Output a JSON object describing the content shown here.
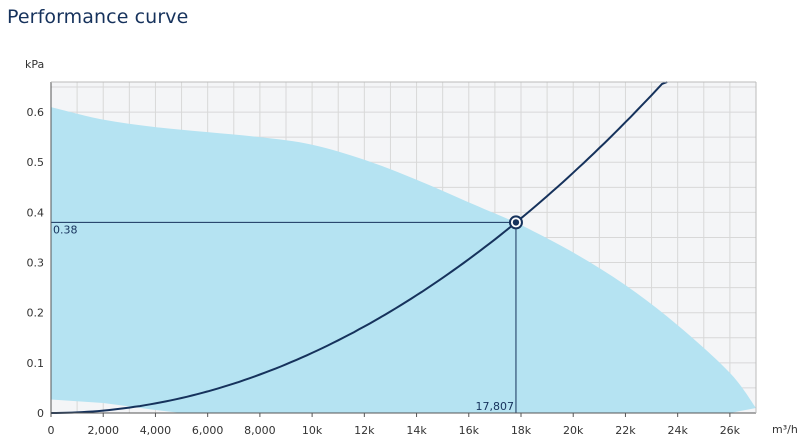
{
  "page": {
    "title": "Performance curve"
  },
  "chart_data": {
    "type": "line",
    "title": "Performance curve",
    "ylabel": "kPa",
    "xlabel": "m³/h",
    "xlim": [
      0,
      27000
    ],
    "ylim": [
      0,
      0.66
    ],
    "x_ticks": [
      0,
      2000,
      4000,
      6000,
      8000,
      10000,
      12000,
      14000,
      16000,
      18000,
      20000,
      22000,
      24000,
      26000
    ],
    "x_tick_labels": [
      "0",
      "2,000",
      "4,000",
      "6,000",
      "8,000",
      "10k",
      "12k",
      "14k",
      "16k",
      "18k",
      "20k",
      "22k",
      "24k",
      "26k"
    ],
    "y_ticks": [
      0,
      0.1,
      0.2,
      0.3,
      0.4,
      0.5,
      0.6
    ],
    "y_tick_labels": [
      "0",
      "0.1",
      "0.2",
      "0.3",
      "0.4",
      "0.5",
      "0.6"
    ],
    "grid": true,
    "colors": {
      "area": "#b5e3f2",
      "curve": "#16325c",
      "grid": "#d8d8d8",
      "plot_bg": "#f4f5f7"
    },
    "operating_range": {
      "upper": [
        [
          0,
          0.61
        ],
        [
          2000,
          0.585
        ],
        [
          4000,
          0.57
        ],
        [
          6000,
          0.56
        ],
        [
          8000,
          0.55
        ],
        [
          10000,
          0.535
        ],
        [
          12000,
          0.505
        ],
        [
          14000,
          0.465
        ],
        [
          16000,
          0.42
        ],
        [
          17807,
          0.38
        ],
        [
          18000,
          0.375
        ],
        [
          20000,
          0.32
        ],
        [
          22000,
          0.255
        ],
        [
          24000,
          0.175
        ],
        [
          26000,
          0.08
        ],
        [
          27000,
          0.01
        ]
      ],
      "lower": [
        [
          27000,
          0.01
        ],
        [
          26000,
          0.0
        ],
        [
          5000,
          0.0
        ],
        [
          4000,
          0.006
        ],
        [
          2000,
          0.02
        ],
        [
          0,
          0.027
        ]
      ]
    },
    "system_curve": {
      "k": 1.198e-09,
      "x_max": 24000
    },
    "operating_point": {
      "x": 17807,
      "y": 0.38,
      "x_label": "17,807",
      "y_label": "0.38"
    }
  }
}
